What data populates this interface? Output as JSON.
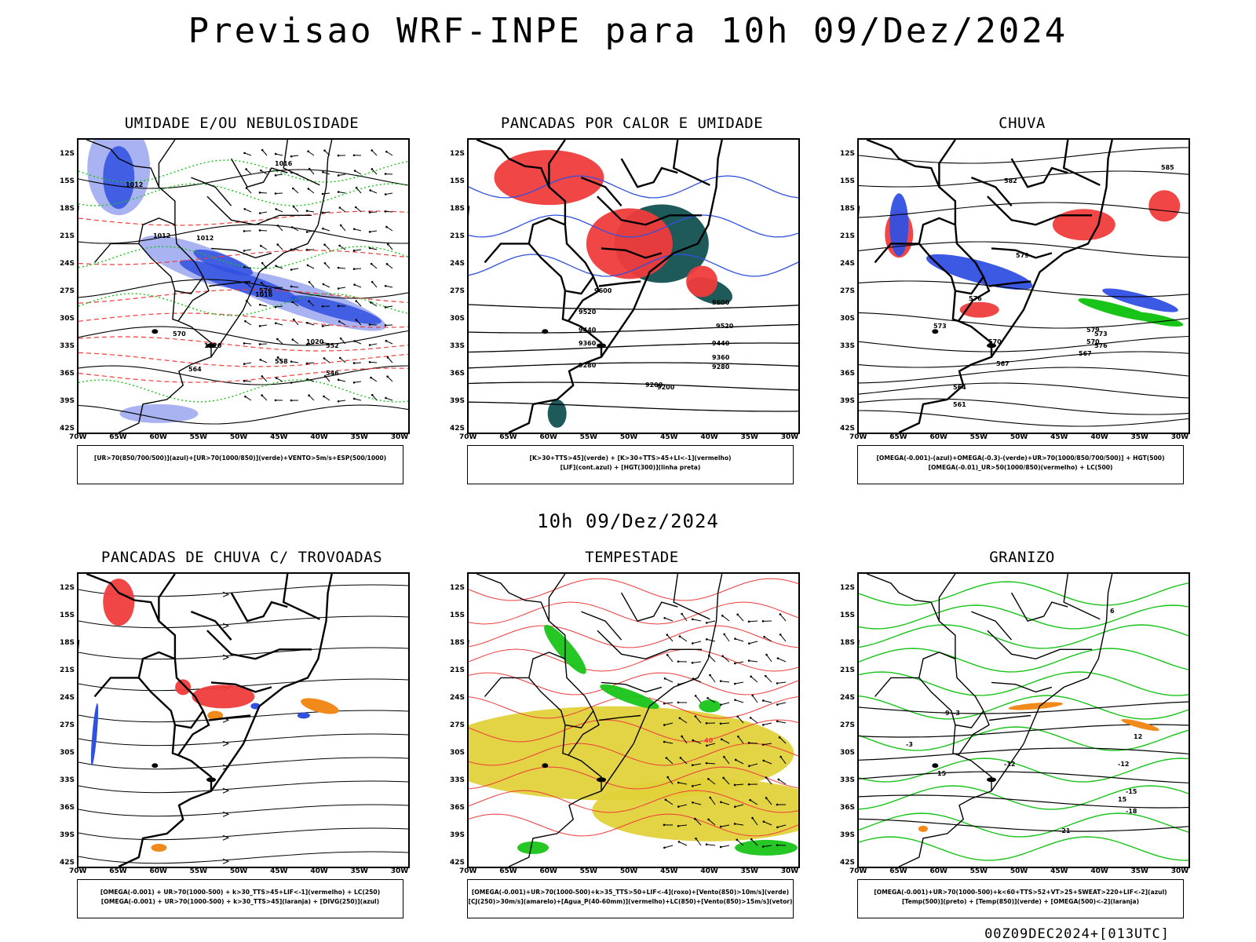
{
  "title": "Previsao WRF-INPE  para 10h 09/Dez/2024",
  "subtitle": "10h 09/Dez/2024",
  "footer": "00Z09DEC2024+[013UTC]",
  "axes": {
    "lat_labels": [
      "12S",
      "15S",
      "18S",
      "21S",
      "24S",
      "27S",
      "30S",
      "33S",
      "36S",
      "39S",
      "42S"
    ],
    "lon_labels": [
      "70W",
      "65W",
      "60W",
      "55W",
      "50W",
      "45W",
      "40W",
      "35W",
      "30W"
    ]
  },
  "colors": {
    "blue": "#3050e0",
    "light_blue": "#9aa6ee",
    "green": "#18c418",
    "red": "#f03c3c",
    "dark_teal": "#1f5a5a",
    "yellow": "#e0d23a",
    "orange": "#f08a1a"
  },
  "panels": [
    {
      "title": "UMIDADE E/OU NEBULOSIDADE",
      "legend": [
        "[UR>70(850/700/500)](azul)+[UR>70(1000/850)](verde)+VENTO>5m/s+ESP(500/1000)"
      ],
      "contour_labels": [
        "1016",
        "1012",
        "1012",
        "1012",
        "1016",
        "1020",
        "1020",
        "576",
        "570",
        "564",
        "558",
        "552",
        "546"
      ]
    },
    {
      "title": "PANCADAS POR CALOR E UMIDADE",
      "legend": [
        "[K>30+TTS>45](verde) + [K>30+TTS>45+LI<-1](vermelho)",
        "[LIF](cont.azul) + [HGT(300)](linha preta)"
      ],
      "contour_labels": [
        "9600",
        "9520",
        "9440",
        "9360",
        "9280",
        "9200",
        "9520",
        "9440",
        "9360",
        "9280",
        "9200",
        "9600"
      ]
    },
    {
      "title": "CHUVA",
      "legend": [
        "[OMEGA(-0.001)-(azul)+OMEGA(-0.3)-(verde)+UR>70(1000/850/700/500)] + HGT(500)",
        "[OMEGA(-0.01)_UR>50(1000/850)(vermelho) + LC(500)"
      ],
      "contour_labels": [
        "585",
        "582",
        "579",
        "576",
        "573",
        "570",
        "567",
        "564",
        "561",
        "579",
        "576",
        "573",
        "570",
        "567"
      ]
    },
    {
      "title": "PANCADAS DE CHUVA C/ TROVOADAS",
      "legend": [
        "[OMEGA(-0.001) + UR>70(1000-500) + k>30_TTS>45+LIF<-1](vermelho) + LC(250)",
        "[OMEGA(-0.001) + UR>70(1000-500) + k>30_TTS>45](laranja) + [DIVG(250)](azul)"
      ],
      "contour_labels": []
    },
    {
      "title": "TEMPESTADE",
      "legend": [
        "[OMEGA(-0.001)+UR>70(1000-500)+k>35_TTS>50+LIF<-4](roxo)+[Vento(850)>10m/s](verde)",
        "[CJ(250)>30m/s](amarelo)+[Agua_P(40-60mm)](vermelho)+LC(850)+[Vento(850)>15m/s](vetor)"
      ],
      "contour_labels": [
        "40"
      ]
    },
    {
      "title": "GRANIZO",
      "legend": [
        "[OMEGA(-0.001)+UR>70(1000-500)+k<60+TTS>52+VT>25+SWEAT>220+LIF<-2](azul)",
        "[Temp(500)](preto) + [Temp(850)](verde) + [OMEGA(500)<-2](laranja)"
      ],
      "contour_labels": [
        "-3",
        "-3",
        "-12",
        "-12",
        "-15",
        "-18",
        "-21",
        "15",
        "15",
        "12",
        "9",
        "6"
      ]
    }
  ]
}
